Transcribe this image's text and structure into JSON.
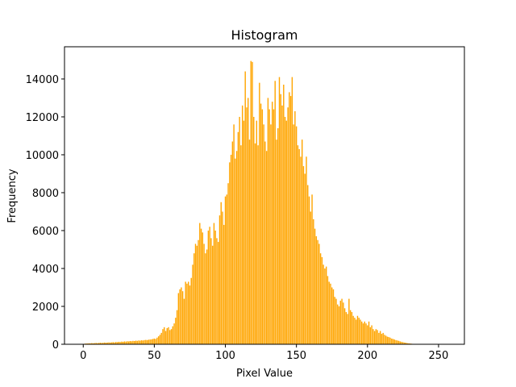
{
  "chart_data": {
    "type": "bar",
    "title": "Histogram",
    "x_label": "Pixel Value",
    "y_label": "Frequency",
    "color": "#ffa500",
    "bar_width": 0.8,
    "x": [
      0,
      1,
      2,
      3,
      4,
      5,
      6,
      7,
      8,
      9,
      10,
      11,
      12,
      13,
      14,
      15,
      16,
      17,
      18,
      19,
      20,
      21,
      22,
      23,
      24,
      25,
      26,
      27,
      28,
      29,
      30,
      31,
      32,
      33,
      34,
      35,
      36,
      37,
      38,
      39,
      40,
      41,
      42,
      43,
      44,
      45,
      46,
      47,
      48,
      49,
      50,
      51,
      52,
      53,
      54,
      55,
      56,
      57,
      58,
      59,
      60,
      61,
      62,
      63,
      64,
      65,
      66,
      67,
      68,
      69,
      70,
      71,
      72,
      73,
      74,
      75,
      76,
      77,
      78,
      79,
      80,
      81,
      82,
      83,
      84,
      85,
      86,
      87,
      88,
      89,
      90,
      91,
      92,
      93,
      94,
      95,
      96,
      97,
      98,
      99,
      100,
      101,
      102,
      103,
      104,
      105,
      106,
      107,
      108,
      109,
      110,
      111,
      112,
      113,
      114,
      115,
      116,
      117,
      118,
      119,
      120,
      121,
      122,
      123,
      124,
      125,
      126,
      127,
      128,
      129,
      130,
      131,
      132,
      133,
      134,
      135,
      136,
      137,
      138,
      139,
      140,
      141,
      142,
      143,
      144,
      145,
      146,
      147,
      148,
      149,
      150,
      151,
      152,
      153,
      154,
      155,
      156,
      157,
      158,
      159,
      160,
      161,
      162,
      163,
      164,
      165,
      166,
      167,
      168,
      169,
      170,
      171,
      172,
      173,
      174,
      175,
      176,
      177,
      178,
      179,
      180,
      181,
      182,
      183,
      184,
      185,
      186,
      187,
      188,
      189,
      190,
      191,
      192,
      193,
      194,
      195,
      196,
      197,
      198,
      199,
      200,
      201,
      202,
      203,
      204,
      205,
      206,
      207,
      208,
      209,
      210,
      211,
      212,
      213,
      214,
      215,
      216,
      217,
      218,
      219,
      220,
      221,
      222,
      223,
      224,
      225,
      226,
      227,
      228,
      229,
      230,
      231,
      232,
      233,
      234,
      235,
      236,
      237,
      238,
      239,
      240,
      241,
      242,
      243,
      244,
      245,
      246,
      247,
      248,
      249,
      250,
      251,
      252,
      253,
      254,
      255
    ],
    "values": [
      20,
      30,
      40,
      40,
      50,
      50,
      60,
      50,
      60,
      70,
      60,
      70,
      80,
      70,
      80,
      90,
      80,
      90,
      100,
      90,
      100,
      110,
      100,
      120,
      110,
      130,
      120,
      140,
      130,
      150,
      140,
      160,
      150,
      170,
      160,
      180,
      170,
      190,
      180,
      200,
      190,
      210,
      200,
      220,
      230,
      220,
      240,
      250,
      260,
      280,
      300,
      280,
      350,
      420,
      500,
      600,
      800,
      900,
      700,
      850,
      900,
      750,
      800,
      950,
      1100,
      1400,
      1800,
      2700,
      2900,
      3000,
      2800,
      2400,
      3300,
      3200,
      3300,
      3100,
      3500,
      4200,
      4800,
      5300,
      5200,
      5500,
      6400,
      6100,
      5900,
      5300,
      4800,
      5000,
      6000,
      6200,
      5600,
      5200,
      6400,
      6000,
      5600,
      5400,
      6800,
      7500,
      7000,
      6300,
      7800,
      7900,
      8500,
      9600,
      10000,
      10700,
      11600,
      9800,
      10200,
      11200,
      12000,
      10500,
      12600,
      11800,
      14400,
      12500,
      13000,
      10800,
      14950,
      14900,
      12000,
      10600,
      11800,
      10500,
      13800,
      12700,
      12400,
      11600,
      10700,
      10200,
      13000,
      12400,
      11600,
      12800,
      12400,
      13900,
      10800,
      11400,
      14100,
      13200,
      12600,
      13700,
      12000,
      11800,
      12500,
      13300,
      13100,
      14100,
      11600,
      12300,
      11500,
      10500,
      10300,
      9900,
      10800,
      9400,
      9000,
      9900,
      8400,
      7800,
      7000,
      7900,
      6600,
      6100,
      5700,
      5500,
      5300,
      4800,
      4600,
      4200,
      4000,
      4100,
      3600,
      3300,
      3200,
      3000,
      2900,
      2500,
      2400,
      2100,
      2000,
      2300,
      2400,
      2200,
      1900,
      1700,
      1600,
      2400,
      1800,
      1700,
      1500,
      1400,
      1300,
      1500,
      1400,
      1300,
      1200,
      1100,
      1200,
      1100,
      1000,
      1200,
      900,
      1000,
      800,
      700,
      800,
      750,
      600,
      700,
      550,
      600,
      500,
      450,
      400,
      380,
      350,
      300,
      280,
      250,
      220,
      200,
      180,
      150,
      130,
      110,
      90,
      80,
      60,
      50,
      40,
      30,
      20,
      10,
      5,
      3,
      2,
      1,
      0,
      0,
      0,
      0,
      0,
      0,
      0,
      0,
      0,
      0,
      0,
      0,
      0,
      0,
      0,
      0,
      0,
      0
    ],
    "xlim": [
      -13.19,
      268.19
    ],
    "ylim": [
      0,
      15700
    ],
    "xticks": [
      0,
      50,
      100,
      150,
      200,
      250
    ],
    "yticks": [
      0,
      2000,
      4000,
      6000,
      8000,
      10000,
      12000,
      14000
    ]
  }
}
